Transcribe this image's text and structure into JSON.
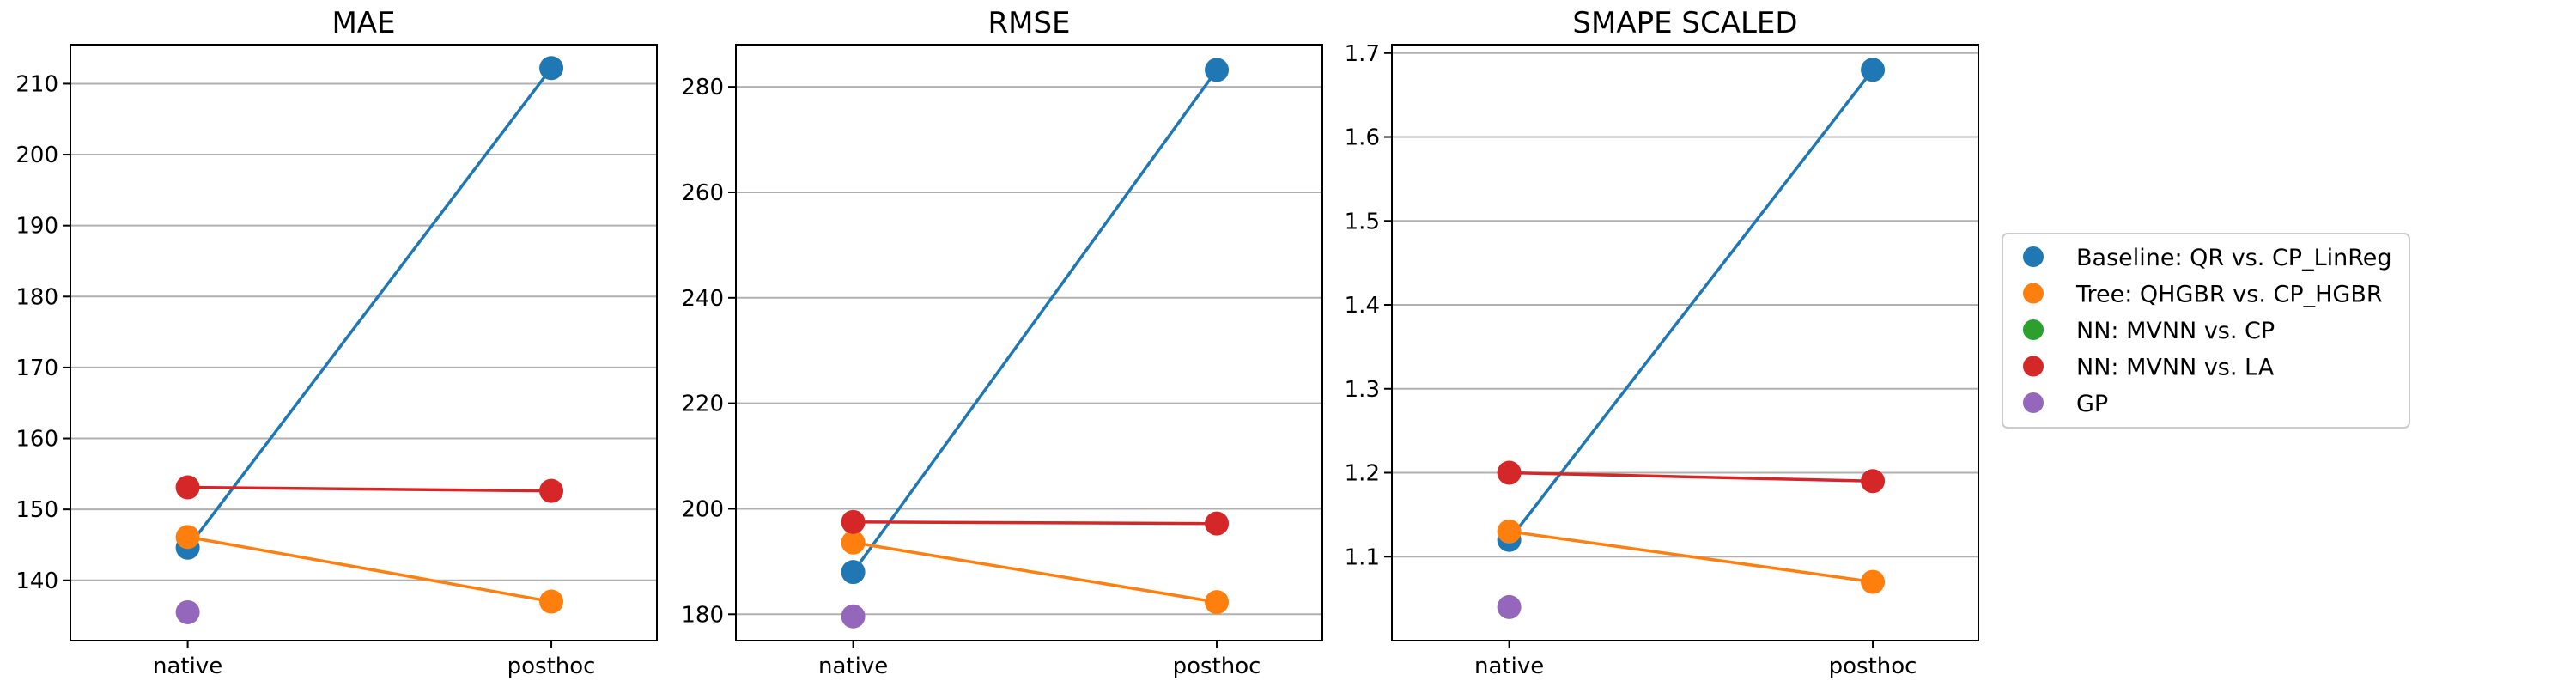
{
  "chart_data": {
    "type": "line",
    "categories": [
      "native",
      "posthoc"
    ],
    "series_styles": [
      {
        "name": "Baseline: QR vs. CP_LinReg",
        "color": "#1f77b4"
      },
      {
        "name": "Tree: QHGBR vs. CP_HGBR",
        "color": "#ff7f0e"
      },
      {
        "name": "NN: MVNN vs. CP",
        "color": "#2ca02c"
      },
      {
        "name": "NN: MVNN vs. LA",
        "color": "#d62728"
      },
      {
        "name": "GP",
        "color": "#9467bd"
      }
    ],
    "legend": {
      "placement": "center-right",
      "labels": [
        "Baseline: QR vs. CP_LinReg",
        "Tree: QHGBR vs. CP_HGBR",
        "NN: MVNN vs. CP",
        "NN: MVNN vs. LA",
        "GP"
      ]
    },
    "panels": [
      {
        "title": "MAE",
        "ylim": [
          131.5,
          215.5
        ],
        "yticks": [
          140,
          150,
          160,
          170,
          180,
          190,
          200,
          210
        ],
        "grid": "y",
        "series": [
          {
            "values": [
              144.6,
              212.2
            ]
          },
          {
            "values": [
              146.1,
              137.0
            ]
          },
          {
            "values": [
              null,
              null
            ]
          },
          {
            "values": [
              153.1,
              152.6
            ]
          },
          {
            "values": [
              135.5,
              null
            ]
          }
        ]
      },
      {
        "title": "RMSE",
        "ylim": [
          175,
          288
        ],
        "yticks": [
          180,
          200,
          220,
          240,
          260,
          280
        ],
        "grid": "y",
        "series": [
          {
            "values": [
              188.0,
              283.2
            ]
          },
          {
            "values": [
              193.6,
              182.3
            ]
          },
          {
            "values": [
              null,
              null
            ]
          },
          {
            "values": [
              197.5,
              197.2
            ]
          },
          {
            "values": [
              179.6,
              null
            ]
          }
        ]
      },
      {
        "title": "SMAPE SCALED",
        "ylim": [
          1.0,
          1.71
        ],
        "yticks": [
          "1.1",
          "1.2",
          "1.3",
          "1.4",
          "1.5",
          "1.6",
          "1.7"
        ],
        "grid": "y",
        "series": [
          {
            "values": [
              1.12,
              1.68
            ]
          },
          {
            "values": [
              1.13,
              1.07
            ]
          },
          {
            "values": [
              null,
              null
            ]
          },
          {
            "values": [
              1.2,
              1.19
            ]
          },
          {
            "values": [
              1.04,
              null
            ]
          }
        ]
      }
    ]
  }
}
